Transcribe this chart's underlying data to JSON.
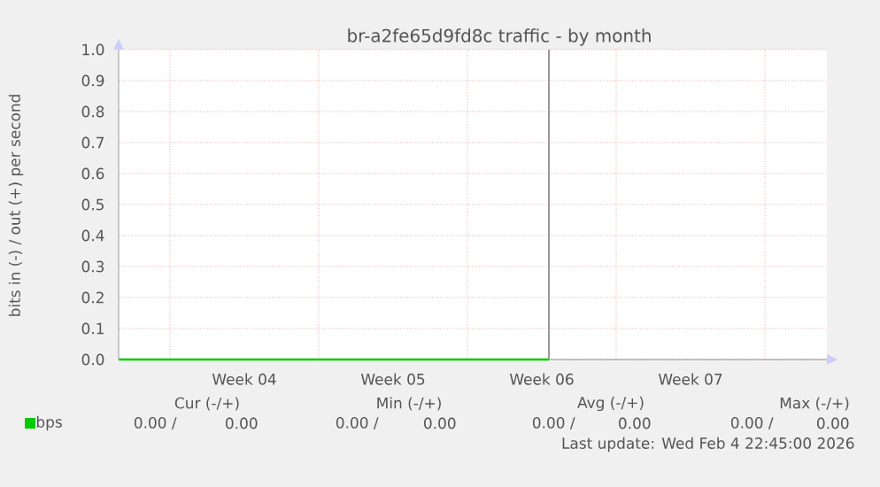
{
  "chart_data": {
    "type": "line",
    "title": "br-a2fe65d9fd8c traffic - by month",
    "ylabel": "bits in (-) / out (+) per second",
    "x": [
      "2026-01-16T14:00",
      "2026-02-05T20:00"
    ],
    "series": [
      {
        "name": "bps",
        "color": "#00cc00",
        "values": [
          0,
          0
        ]
      }
    ],
    "xlim": [
      "2026-01-16T14:00",
      "2026-02-18T22:00"
    ],
    "xticks": [
      {
        "value": "2026-01-19",
        "label": null
      },
      {
        "value": "2026-01-26",
        "label": null
      },
      {
        "value": "2026-02-02",
        "label": null
      },
      {
        "value": "2026-02-09",
        "label": null
      },
      {
        "value": "2026-02-16",
        "label": null
      },
      {
        "value": "2026-01-22T12:00",
        "label": "Week 04"
      },
      {
        "value": "2026-01-29T12:00",
        "label": "Week 05"
      },
      {
        "value": "2026-02-05T12:00",
        "label": "Week 06"
      },
      {
        "value": "2026-02-12T12:00",
        "label": "Week 07"
      }
    ],
    "ylim": [
      0,
      1
    ],
    "yticks": [
      {
        "value": 0,
        "label": "0.0"
      },
      {
        "value": 0.1,
        "label": "0.1"
      },
      {
        "value": 0.2,
        "label": "0.2"
      },
      {
        "value": 0.3,
        "label": "0.3"
      },
      {
        "value": 0.4,
        "label": "0.4"
      },
      {
        "value": 0.5,
        "label": "0.5"
      },
      {
        "value": 0.6,
        "label": "0.6"
      },
      {
        "value": 0.7,
        "label": "0.7"
      },
      {
        "value": 0.8,
        "label": "0.8"
      },
      {
        "value": 0.9,
        "label": "0.9"
      },
      {
        "value": 1,
        "label": "1.0"
      }
    ],
    "ref_lines": [
      {
        "axis": "x",
        "value": "2026-02-05T20:00",
        "color": "#808080"
      }
    ],
    "grid": true,
    "legend": "bottom left",
    "annotations": [
      "Cur (-/+)",
      "Min (-/+)",
      "Avg (-/+)",
      "Max (-/+)",
      "0.00 /",
      "0.00",
      "0.00 /",
      "0.00",
      "0.00 /",
      "0.00",
      "0.00 /",
      "0.00",
      "Last update: Wed Feb  4 22:45:00 2026"
    ]
  }
}
